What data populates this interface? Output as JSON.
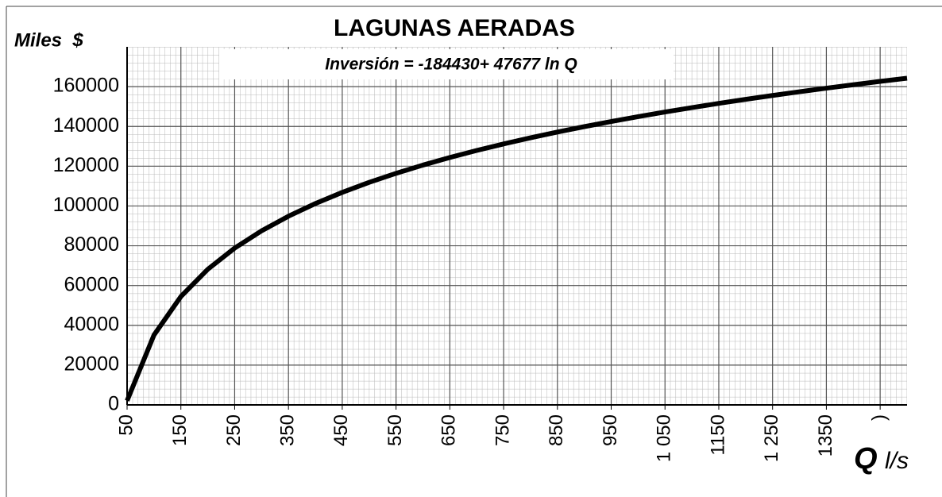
{
  "chart_data": {
    "type": "line",
    "title": "LAGUNAS AERADAS",
    "annotation": "Inversión = -184430+ 47677 ln Q",
    "y_label": "Miles  $",
    "x_label": "Q",
    "x_unit": "l/s",
    "x": [
      50,
      100,
      150,
      200,
      250,
      300,
      350,
      400,
      450,
      500,
      550,
      600,
      650,
      700,
      750,
      800,
      850,
      900,
      950,
      1000,
      1050,
      1100,
      1150,
      1200,
      1250,
      1300,
      1350,
      1400,
      1450,
      1500
    ],
    "series": [
      {
        "name": "Inversión",
        "color": "#000000",
        "values": [
          2083,
          35131,
          54462,
          68178,
          78817,
          87510,
          94859,
          101225,
          106841,
          111864,
          116408,
          120557,
          124373,
          127906,
          131195,
          134272,
          137163,
          139888,
          142465,
          144911,
          147237,
          149455,
          151575,
          153604,
          155550,
          157420,
          159219,
          160953,
          162626,
          164242
        ]
      }
    ],
    "xlim": [
      50,
      1500
    ],
    "xticks": [
      50,
      150,
      250,
      350,
      450,
      550,
      650,
      750,
      850,
      950,
      {
        "value": 1050,
        "label": "1 050"
      },
      1150,
      {
        "value": 1250,
        "label": "1 250"
      },
      1350,
      {
        "value": 1450,
        "label": ")"
      }
    ],
    "ylim": [
      0,
      180000
    ],
    "yticks": [
      0,
      20000,
      40000,
      60000,
      80000,
      100000,
      120000,
      140000,
      160000
    ],
    "grid": true
  }
}
